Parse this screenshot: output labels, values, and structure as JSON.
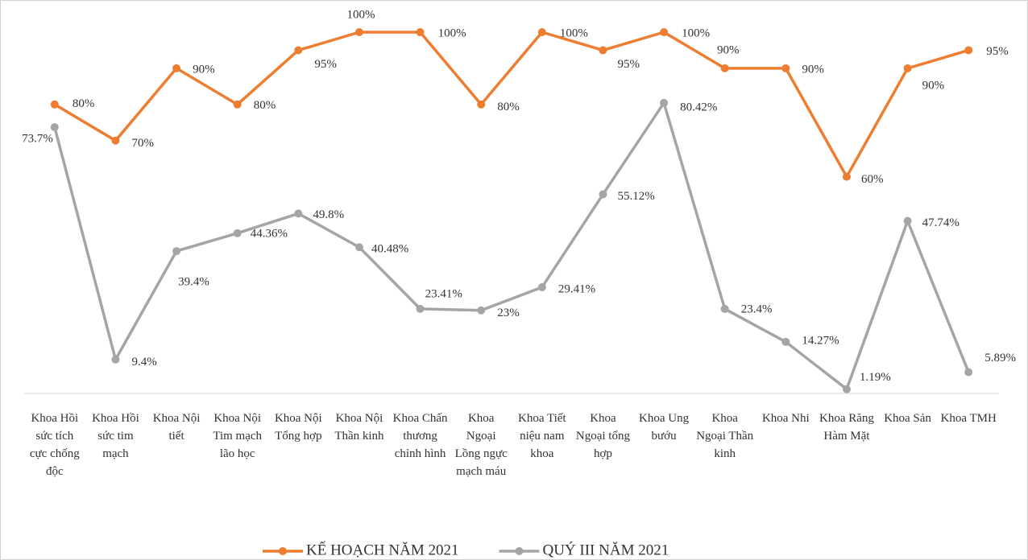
{
  "chart_data": {
    "type": "line",
    "categories": [
      "Khoa Hồi sức tích cực chống độc",
      "Khoa Hồi sức tim mạch",
      "Khoa Nội tiết",
      "Khoa Nội Tim mạch lão học",
      "Khoa Nội Tổng hợp",
      "Khoa Nội Thần kinh",
      "Khoa Chấn thương chỉnh hình",
      "Khoa Ngoại Lồng ngực mạch máu",
      "Khoa Tiết niệu nam khoa",
      "Khoa Ngoại tổng hợp",
      "Khoa Ung bướu",
      "Khoa Ngoại Thần kinh",
      "Khoa Nhi",
      "Khoa Răng Hàm Mặt",
      "Khoa Sản",
      "Khoa TMH"
    ],
    "series": [
      {
        "name": "KẾ HOẠCH NĂM 2021",
        "color": "#ED7D31",
        "values": [
          80,
          70,
          90,
          80,
          95,
          100,
          100,
          80,
          100,
          95,
          100,
          90,
          90,
          60,
          90,
          95
        ],
        "value_labels": [
          "80%",
          "70%",
          "90%",
          "80%",
          "95%",
          "100%",
          "100%",
          "80%",
          "100%",
          "95%",
          "100%",
          "90%",
          "90%",
          "60%",
          "90%",
          "95%"
        ]
      },
      {
        "name": "QUÝ III NĂM 2021",
        "color": "#A5A5A5",
        "values": [
          73.7,
          9.4,
          39.4,
          44.36,
          49.8,
          40.48,
          23.41,
          23,
          29.41,
          55.12,
          80.42,
          23.4,
          14.27,
          1.19,
          47.74,
          5.89
        ],
        "value_labels": [
          "73.7%",
          "9.4%",
          "39.4%",
          "44.36%",
          "49.8%",
          "40.48%",
          "23.41%",
          "23%",
          "29.41%",
          "55.12%",
          "80.42%",
          "23.4%",
          "14.27%",
          "1.19%",
          "47.74%",
          "5.89%"
        ]
      }
    ],
    "ylim": [
      0,
      100
    ],
    "legend": "bottom"
  }
}
